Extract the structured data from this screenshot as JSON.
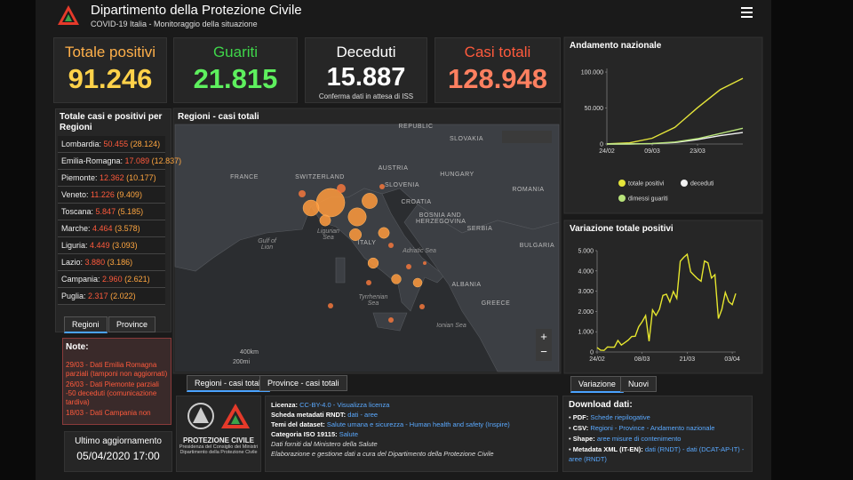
{
  "header": {
    "title": "Dipartimento della Protezione Civile",
    "subtitle": "COVID-19 Italia - Monitoraggio della situazione"
  },
  "kpis": [
    {
      "label": "Totale positivi",
      "value": "91.246"
    },
    {
      "label": "Guariti",
      "value": "21.815"
    },
    {
      "label": "Deceduti",
      "value": "15.887",
      "note": "Conferma dati in attesa di ISS"
    },
    {
      "label": "Casi totali",
      "value": "128.948"
    }
  ],
  "regions": {
    "title": "Totale casi e positivi per Regioni",
    "rows": [
      {
        "name": "Lombardia:",
        "total": "50.455",
        "positive": "(28.124)"
      },
      {
        "name": "Emilia-Romagna:",
        "total": "17.089",
        "positive": "(12.837)"
      },
      {
        "name": "Piemonte:",
        "total": "12.362",
        "positive": "(10.177)"
      },
      {
        "name": "Veneto:",
        "total": "11.226",
        "positive": "(9.409)"
      },
      {
        "name": "Toscana:",
        "total": "5.847",
        "positive": "(5.185)"
      },
      {
        "name": "Marche:",
        "total": "4.464",
        "positive": "(3.578)"
      },
      {
        "name": "Liguria:",
        "total": "4.449",
        "positive": "(3.093)"
      },
      {
        "name": "Lazio:",
        "total": "3.880",
        "positive": "(3.186)"
      },
      {
        "name": "Campania:",
        "total": "2.960",
        "positive": "(2.621)"
      },
      {
        "name": "Puglia:",
        "total": "2.317",
        "positive": "(2.022)"
      }
    ],
    "tabs": [
      "Regioni",
      "Province"
    ]
  },
  "notes": {
    "title": "Note:",
    "items": [
      "29/03 - Dati Emilia Romagna parziali (tamponi non aggiornati)",
      "26/03 - Dati Piemonte parziali -50 deceduti (comunicazione tardiva)",
      "18/03 - Dati Campania non"
    ]
  },
  "update": {
    "label": "Ultimo aggiornamento",
    "value": "05/04/2020 17:00"
  },
  "map": {
    "title": "Regioni - casi totali",
    "labels": [
      "REPUBLIC",
      "SLOVAKIA",
      "FRANCE",
      "SWITZERLAND",
      "AUSTRIA",
      "HUNGARY",
      "SLOVENIA",
      "ROMANIA",
      "CROATIA",
      "BOSNIA AND HERZEGOVINA",
      "SERBIA",
      "BULGARIA",
      "Gulf of Lion",
      "Ligurian Sea",
      "ITALY",
      "Adriatic Sea",
      "ALBANIA",
      "Tyrrhenian Sea",
      "GREECE",
      "Ionian Sea"
    ],
    "scale": [
      "400km",
      "200mi"
    ],
    "tabs": [
      "Regioni - casi totali",
      "Province - casi totali"
    ]
  },
  "chart_data": [
    {
      "type": "line",
      "title": "Andamento nazionale",
      "categories": [
        "24/02",
        null,
        "09/03",
        null,
        "23/03",
        null,
        null
      ],
      "series": [
        {
          "name": "totale positivi",
          "color": "#e4e43a",
          "values": [
            221,
            1577,
            7985,
            23073,
            50418,
            75528,
            91246
          ]
        },
        {
          "name": "deceduti",
          "color": "#f2f2f2",
          "values": [
            7,
            52,
            463,
            2158,
            6077,
            11591,
            15887
          ]
        },
        {
          "name": "dimessi guariti",
          "color": "#b8e37a",
          "values": [
            1,
            160,
            724,
            2749,
            7432,
            14620,
            21815
          ]
        }
      ],
      "ylim": [
        0,
        105000
      ],
      "yticks": [
        0,
        {
          "value": 50000,
          "label": "50.000"
        },
        {
          "value": 100000,
          "label": "100.000"
        }
      ],
      "grid": false,
      "legend": "bottom",
      "tabs": []
    },
    {
      "type": "line",
      "title": "Variazione totale positivi",
      "categories": [
        "24/02",
        null,
        null,
        null,
        null,
        null,
        null,
        null,
        null,
        null,
        null,
        null,
        null,
        "08/03",
        null,
        null,
        null,
        null,
        null,
        null,
        null,
        null,
        null,
        null,
        null,
        null,
        "21/03",
        null,
        null,
        null,
        null,
        null,
        null,
        null,
        null,
        null,
        null,
        null,
        null,
        "03/04",
        null
      ],
      "series": [
        {
          "name": "Variazione",
          "color": "#e6e62e",
          "values": [
            221,
            93,
            78,
            250,
            238,
            240,
            566,
            342,
            466,
            587,
            769,
            778,
            1247,
            1492,
            1797,
            529,
            2076,
            1809,
            2114,
            2795,
            2853,
            2470,
            2989,
            2648,
            4480,
            4670,
            4821,
            3957,
            3780,
            3612,
            3491,
            4492,
            4401,
            3651,
            3815,
            1648,
            2107,
            2937,
            2477,
            2339,
            2886
          ]
        }
      ],
      "ylim": [
        0,
        5000
      ],
      "yticks": [
        0,
        {
          "value": 1000,
          "label": "1.000"
        },
        {
          "value": 2000,
          "label": "2.000"
        },
        {
          "value": 3000,
          "label": "3.000"
        },
        {
          "value": 4000,
          "label": "4.000"
        },
        {
          "value": 5000,
          "label": "5.000"
        }
      ],
      "grid": false,
      "legend": "none",
      "tabs": [
        "Variazione",
        "Nuovi"
      ]
    }
  ],
  "logo": {
    "name": "PROTEZIONE CIVILE",
    "line1": "Presidenza del Consiglio dei Ministri",
    "line2": "Dipartimento della Protezione Civile"
  },
  "info": [
    {
      "label": "Licenza:",
      "text": "CC-BY-4.0 - Visualizza licenza"
    },
    {
      "label": "Scheda metadati RNDT:",
      "text": "dati - aree"
    },
    {
      "label": "Temi del dataset:",
      "text": "Salute umana e sicurezza - Human health and safety (Inspire)"
    },
    {
      "label": "Categoria ISO 19115:",
      "text": "Salute"
    },
    {
      "label": "",
      "text": "Dati forniti dal Ministero della Salute"
    },
    {
      "label": "",
      "text": "Elaborazione e gestione dati a cura del Dipartimento della Protezione Civile"
    }
  ],
  "download": {
    "title": "Download dati:",
    "items": [
      {
        "label": "PDF:",
        "text": "Schede riepilogative"
      },
      {
        "label": "CSV:",
        "text": "Regioni - Province - Andamento nazionale"
      },
      {
        "label": "Shape:",
        "text": "aree misure di contenimento"
      },
      {
        "label": "Metadata XML (IT-EN):",
        "text": "dati (RNDT) - dati (DCAT-AP-IT) - aree (RNDT)"
      }
    ]
  }
}
